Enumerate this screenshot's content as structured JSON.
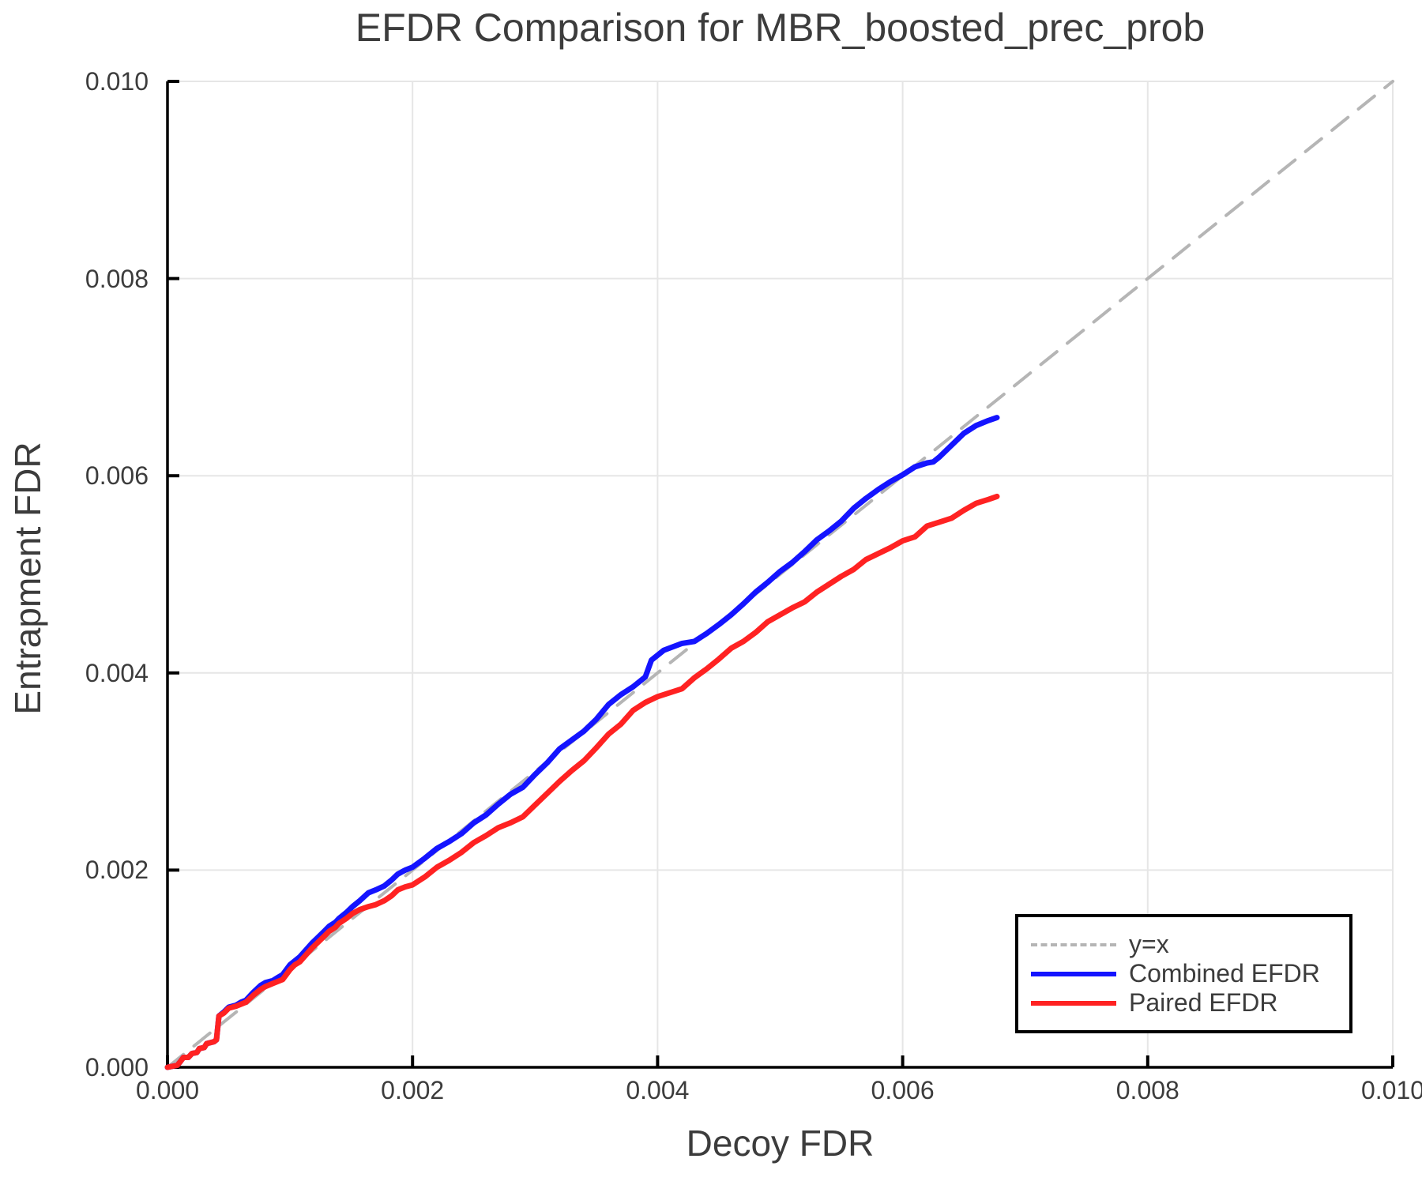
{
  "chart_data": {
    "type": "line",
    "title": "EFDR Comparison for MBR_boosted_prec_prob",
    "xlabel": "Decoy FDR",
    "ylabel": "Entrapment FDR",
    "xlim": [
      0.0,
      0.01
    ],
    "ylim": [
      0.0,
      0.01
    ],
    "xticks": [
      0.0,
      0.002,
      0.004,
      0.006,
      0.008,
      0.01
    ],
    "yticks": [
      0.0,
      0.002,
      0.004,
      0.006,
      0.008,
      0.01
    ],
    "tick_decimals": 3,
    "grid": true,
    "legend_position": "lower right",
    "colors": {
      "grid": "#e6e6e6",
      "spine": "#000000",
      "text": "#3c3c3c",
      "identity": "#b5b5b5",
      "combined": "#1414ff",
      "paired": "#ff2222"
    },
    "series": [
      {
        "name": "y=x",
        "color": "#b5b5b5",
        "style": "dashed",
        "width": 4,
        "points": [
          [
            0.0,
            0.0
          ],
          [
            0.01,
            0.01
          ]
        ]
      },
      {
        "name": "Combined EFDR",
        "color": "#1414ff",
        "style": "solid",
        "width": 7,
        "points": [
          [
            0.0,
            0.0
          ],
          [
            8e-05,
            2e-05
          ],
          [
            0.0001,
            5e-05
          ],
          [
            0.00013,
            0.0001
          ],
          [
            0.00017,
            0.0001
          ],
          [
            0.0002,
            0.00014
          ],
          [
            0.00024,
            0.00015
          ],
          [
            0.00026,
            0.00019
          ],
          [
            0.0003,
            0.0002
          ],
          [
            0.00032,
            0.00024
          ],
          [
            0.00038,
            0.00026
          ],
          [
            0.0004,
            0.00028
          ],
          [
            0.00042,
            0.00052
          ],
          [
            0.00046,
            0.00056
          ],
          [
            0.0005,
            0.00061
          ],
          [
            0.00056,
            0.00063
          ],
          [
            0.0006,
            0.00066
          ],
          [
            0.00064,
            0.00068
          ],
          [
            0.0007,
            0.00076
          ],
          [
            0.00076,
            0.00083
          ],
          [
            0.0008,
            0.00086
          ],
          [
            0.00086,
            0.00088
          ],
          [
            0.0009,
            0.00091
          ],
          [
            0.00094,
            0.00094
          ],
          [
            0.001,
            0.00104
          ],
          [
            0.00104,
            0.00108
          ],
          [
            0.00108,
            0.00112
          ],
          [
            0.00113,
            0.00119
          ],
          [
            0.00118,
            0.00126
          ],
          [
            0.00123,
            0.00132
          ],
          [
            0.00128,
            0.00138
          ],
          [
            0.00132,
            0.00143
          ],
          [
            0.00137,
            0.00147
          ],
          [
            0.0014,
            0.00151
          ],
          [
            0.00146,
            0.00157
          ],
          [
            0.00151,
            0.00163
          ],
          [
            0.00157,
            0.00169
          ],
          [
            0.00164,
            0.00177
          ],
          [
            0.0017,
            0.0018
          ],
          [
            0.00177,
            0.00184
          ],
          [
            0.00183,
            0.0019
          ],
          [
            0.00188,
            0.00196
          ],
          [
            0.00194,
            0.002
          ],
          [
            0.002,
            0.00203
          ],
          [
            0.0021,
            0.00212
          ],
          [
            0.0022,
            0.00222
          ],
          [
            0.0023,
            0.00229
          ],
          [
            0.0024,
            0.00237
          ],
          [
            0.0025,
            0.00248
          ],
          [
            0.0026,
            0.00256
          ],
          [
            0.0027,
            0.00267
          ],
          [
            0.0028,
            0.00277
          ],
          [
            0.0029,
            0.00284
          ],
          [
            0.003,
            0.00297
          ],
          [
            0.0031,
            0.00309
          ],
          [
            0.0032,
            0.00323
          ],
          [
            0.0033,
            0.00332
          ],
          [
            0.0034,
            0.00341
          ],
          [
            0.0035,
            0.00353
          ],
          [
            0.0036,
            0.00368
          ],
          [
            0.0037,
            0.00378
          ],
          [
            0.0038,
            0.00386
          ],
          [
            0.0039,
            0.00396
          ],
          [
            0.00395,
            0.00413
          ],
          [
            0.00405,
            0.00423
          ],
          [
            0.0042,
            0.0043
          ],
          [
            0.0043,
            0.00432
          ],
          [
            0.0044,
            0.0044
          ],
          [
            0.0045,
            0.00449
          ],
          [
            0.0046,
            0.00459
          ],
          [
            0.0047,
            0.0047
          ],
          [
            0.0048,
            0.00482
          ],
          [
            0.0049,
            0.00492
          ],
          [
            0.005,
            0.00503
          ],
          [
            0.0051,
            0.00512
          ],
          [
            0.0052,
            0.00523
          ],
          [
            0.0053,
            0.00535
          ],
          [
            0.0054,
            0.00544
          ],
          [
            0.0055,
            0.00554
          ],
          [
            0.0056,
            0.00567
          ],
          [
            0.0057,
            0.00577
          ],
          [
            0.0058,
            0.00586
          ],
          [
            0.0059,
            0.00594
          ],
          [
            0.006,
            0.00601
          ],
          [
            0.0061,
            0.00609
          ],
          [
            0.0062,
            0.00613
          ],
          [
            0.00625,
            0.00614
          ],
          [
            0.0063,
            0.00619
          ],
          [
            0.0064,
            0.00631
          ],
          [
            0.0065,
            0.00643
          ],
          [
            0.0066,
            0.00651
          ],
          [
            0.0067,
            0.00656
          ],
          [
            0.00677,
            0.00659
          ]
        ]
      },
      {
        "name": "Paired EFDR",
        "color": "#ff2222",
        "style": "solid",
        "width": 7,
        "points": [
          [
            0.0,
            0.0
          ],
          [
            8e-05,
            2e-05
          ],
          [
            0.0001,
            5e-05
          ],
          [
            0.00013,
            0.0001
          ],
          [
            0.00017,
            0.0001
          ],
          [
            0.0002,
            0.00014
          ],
          [
            0.00024,
            0.00015
          ],
          [
            0.00026,
            0.00019
          ],
          [
            0.0003,
            0.0002
          ],
          [
            0.00032,
            0.00024
          ],
          [
            0.00038,
            0.00026
          ],
          [
            0.0004,
            0.00028
          ],
          [
            0.00042,
            0.00052
          ],
          [
            0.00046,
            0.00055
          ],
          [
            0.0005,
            0.0006
          ],
          [
            0.00056,
            0.00062
          ],
          [
            0.0006,
            0.00064
          ],
          [
            0.00064,
            0.00066
          ],
          [
            0.0007,
            0.00073
          ],
          [
            0.00076,
            0.00079
          ],
          [
            0.0008,
            0.00082
          ],
          [
            0.00086,
            0.00085
          ],
          [
            0.0009,
            0.00087
          ],
          [
            0.00094,
            0.00089
          ],
          [
            0.001,
            0.00099
          ],
          [
            0.00104,
            0.00104
          ],
          [
            0.00108,
            0.00107
          ],
          [
            0.00113,
            0.00114
          ],
          [
            0.00118,
            0.00121
          ],
          [
            0.00123,
            0.00127
          ],
          [
            0.00128,
            0.00133
          ],
          [
            0.00132,
            0.00138
          ],
          [
            0.00137,
            0.00142
          ],
          [
            0.0014,
            0.00146
          ],
          [
            0.00146,
            0.00151
          ],
          [
            0.00151,
            0.00156
          ],
          [
            0.00157,
            0.0016
          ],
          [
            0.00164,
            0.00163
          ],
          [
            0.0017,
            0.00165
          ],
          [
            0.00177,
            0.00169
          ],
          [
            0.00183,
            0.00174
          ],
          [
            0.00188,
            0.0018
          ],
          [
            0.00194,
            0.00183
          ],
          [
            0.002,
            0.00185
          ],
          [
            0.0021,
            0.00193
          ],
          [
            0.0022,
            0.00203
          ],
          [
            0.0023,
            0.0021
          ],
          [
            0.0024,
            0.00218
          ],
          [
            0.0025,
            0.00228
          ],
          [
            0.0026,
            0.00235
          ],
          [
            0.0027,
            0.00243
          ],
          [
            0.0028,
            0.00248
          ],
          [
            0.0029,
            0.00254
          ],
          [
            0.003,
            0.00266
          ],
          [
            0.0031,
            0.00278
          ],
          [
            0.0032,
            0.0029
          ],
          [
            0.0033,
            0.00301
          ],
          [
            0.0034,
            0.00311
          ],
          [
            0.0035,
            0.00324
          ],
          [
            0.0036,
            0.00338
          ],
          [
            0.0037,
            0.00348
          ],
          [
            0.0038,
            0.00362
          ],
          [
            0.0039,
            0.0037
          ],
          [
            0.004,
            0.00376
          ],
          [
            0.0041,
            0.0038
          ],
          [
            0.0042,
            0.00384
          ],
          [
            0.0043,
            0.00395
          ],
          [
            0.0044,
            0.00404
          ],
          [
            0.0045,
            0.00414
          ],
          [
            0.0046,
            0.00425
          ],
          [
            0.0047,
            0.00432
          ],
          [
            0.0048,
            0.00441
          ],
          [
            0.0049,
            0.00452
          ],
          [
            0.005,
            0.00459
          ],
          [
            0.0051,
            0.00466
          ],
          [
            0.0052,
            0.00472
          ],
          [
            0.0053,
            0.00482
          ],
          [
            0.0054,
            0.0049
          ],
          [
            0.0055,
            0.00498
          ],
          [
            0.0056,
            0.00505
          ],
          [
            0.0057,
            0.00515
          ],
          [
            0.0058,
            0.00521
          ],
          [
            0.0059,
            0.00527
          ],
          [
            0.006,
            0.00534
          ],
          [
            0.0061,
            0.00538
          ],
          [
            0.0062,
            0.00549
          ],
          [
            0.0063,
            0.00553
          ],
          [
            0.0064,
            0.00557
          ],
          [
            0.0065,
            0.00565
          ],
          [
            0.0066,
            0.00572
          ],
          [
            0.0067,
            0.00576
          ],
          [
            0.00677,
            0.00579
          ]
        ]
      }
    ]
  }
}
